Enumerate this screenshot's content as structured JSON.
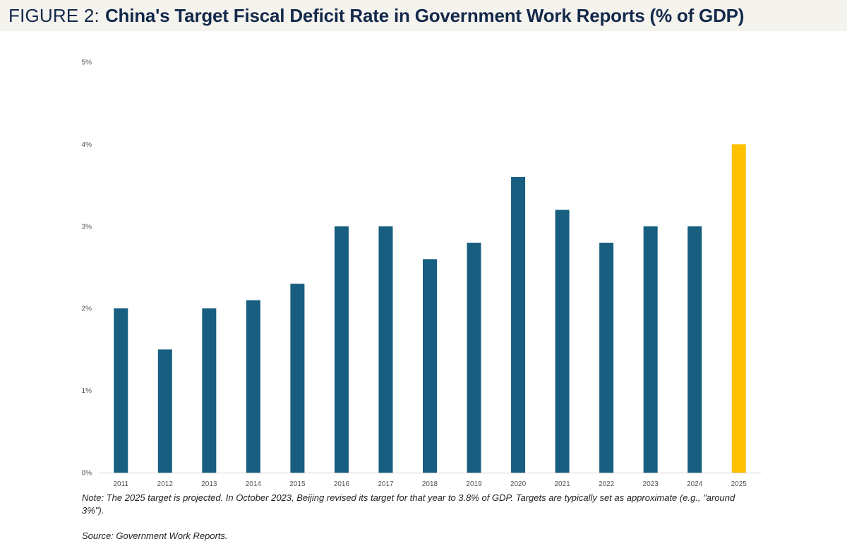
{
  "header": {
    "prefix": "FIGURE 2:",
    "title": "China's Target Fiscal Deficit Rate in Government Work Reports (% of GDP)"
  },
  "chart_data": {
    "type": "bar",
    "title": "China's Target Fiscal Deficit Rate in Government Work Reports (% of GDP)",
    "xlabel": "",
    "ylabel": "",
    "categories": [
      "2011",
      "2012",
      "2013",
      "2014",
      "2015",
      "2016",
      "2017",
      "2018",
      "2019",
      "2020",
      "2021",
      "2022",
      "2023",
      "2024",
      "2025"
    ],
    "values": [
      2.0,
      1.5,
      2.0,
      2.1,
      2.3,
      3.0,
      3.0,
      2.6,
      2.8,
      3.6,
      3.2,
      2.8,
      3.0,
      3.0,
      4.0
    ],
    "ylim": [
      0,
      5
    ],
    "yticks": [
      0,
      1,
      2,
      3,
      4,
      5
    ],
    "ytick_suffix": "%",
    "grid": false,
    "colors": {
      "bar": "#175e80",
      "highlight": "#ffc000",
      "axis": "#d0d0d0"
    },
    "highlight_categories": [
      "2025"
    ]
  },
  "footer": {
    "note": "Note: The 2025 target is projected. In October 2023, Beijing revised its target for that year to 3.8% of GDP. Targets are typically set as approximate (e.g., \"around 3%\").",
    "source": "Source: Government Work Reports."
  }
}
